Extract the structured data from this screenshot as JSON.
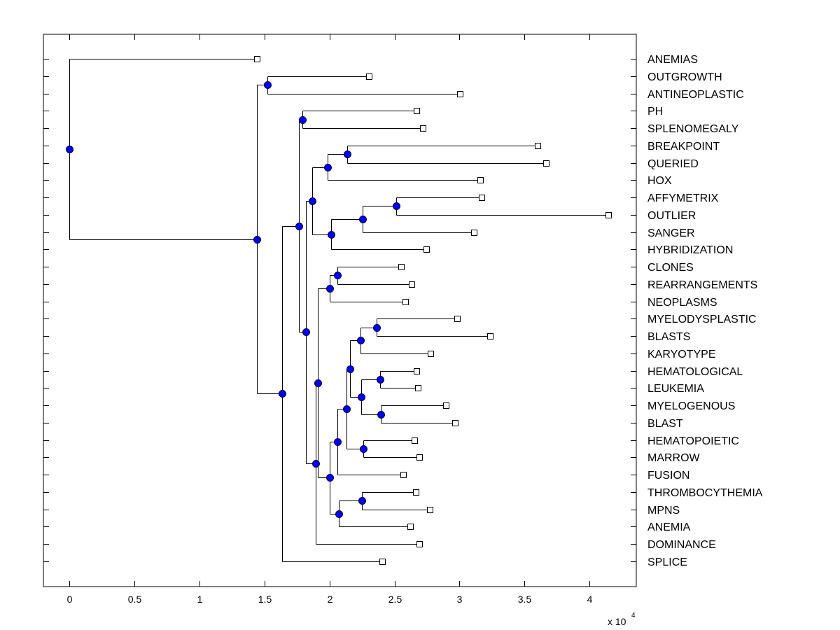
{
  "chart_data": {
    "type": "dendrogram",
    "title": "",
    "xlabel": "",
    "ylabel": "",
    "x_multiplier_label": "x 10",
    "x_multiplier_exponent": "4",
    "xlim": [
      -0.2,
      4.36
    ],
    "xticks": [
      0,
      0.5,
      1,
      1.5,
      2,
      2.5,
      3,
      3.5,
      4
    ],
    "xtick_labels": [
      "0",
      "0.5",
      "1",
      "1.5",
      "2",
      "2.5",
      "3",
      "3.5",
      "4"
    ],
    "grid": false,
    "orientation": "horizontal",
    "colors": {
      "node_fill": "#0000ff",
      "node_edge": "#000033",
      "leaf_fill": "#ffffff",
      "line": "#000000"
    },
    "leaves": [
      {
        "name": "ANEMIAS",
        "value": 1.443
      },
      {
        "name": "OUTGROWTH",
        "value": 2.304
      },
      {
        "name": "ANTINEOPLASTIC",
        "value": 3.004
      },
      {
        "name": "PH",
        "value": 2.67
      },
      {
        "name": "SPLENOMEGALY",
        "value": 2.719
      },
      {
        "name": "BREAKPOINT",
        "value": 3.602
      },
      {
        "name": "QUERIED",
        "value": 3.666
      },
      {
        "name": "HOX",
        "value": 3.16
      },
      {
        "name": "AFFYMETRIX",
        "value": 3.171
      },
      {
        "name": "OUTLIER",
        "value": 4.145
      },
      {
        "name": "SANGER",
        "value": 3.112
      },
      {
        "name": "HYBRIDIZATION",
        "value": 2.746
      },
      {
        "name": "CLONES",
        "value": 2.552
      },
      {
        "name": "REARRANGEMENTS",
        "value": 2.633
      },
      {
        "name": "NEOPLASMS",
        "value": 2.584
      },
      {
        "name": "MYELODYSPLASTIC",
        "value": 2.983
      },
      {
        "name": "BLASTS",
        "value": 3.236
      },
      {
        "name": "KARYOTYPE",
        "value": 2.778
      },
      {
        "name": "HEMATOLOGICAL",
        "value": 2.67
      },
      {
        "name": "LEUKEMIA",
        "value": 2.681
      },
      {
        "name": "MYELOGENOUS",
        "value": 2.896
      },
      {
        "name": "BLAST",
        "value": 2.966
      },
      {
        "name": "HEMATOPOIETIC",
        "value": 2.654
      },
      {
        "name": "MARROW",
        "value": 2.692
      },
      {
        "name": "FUSION",
        "value": 2.568
      },
      {
        "name": "THROMBOCYTHEMIA",
        "value": 2.665
      },
      {
        "name": "MPNS",
        "value": 2.773
      },
      {
        "name": "ANEMIA",
        "value": 2.622
      },
      {
        "name": "DOMINANCE",
        "value": 2.692
      },
      {
        "name": "SPLICE",
        "value": 2.406
      }
    ],
    "nodes": [
      {
        "id": "root",
        "value": 0.0,
        "children": [
          "ANEMIAS",
          "A"
        ]
      },
      {
        "id": "A",
        "value": 1.443,
        "children": [
          "B",
          "C"
        ]
      },
      {
        "id": "B",
        "value": 1.524,
        "children": [
          "OUTGROWTH",
          "ANTINEOPLASTIC"
        ]
      },
      {
        "id": "C",
        "value": 1.637,
        "children": [
          "D",
          "SPLICE"
        ]
      },
      {
        "id": "D",
        "value": 1.766,
        "children": [
          "E",
          "F"
        ]
      },
      {
        "id": "E",
        "value": 1.793,
        "children": [
          "PH",
          "SPLENOMEGALY"
        ]
      },
      {
        "id": "F",
        "value": 1.819,
        "children": [
          "G",
          "H"
        ]
      },
      {
        "id": "G",
        "value": 1.868,
        "children": [
          "I",
          "J"
        ]
      },
      {
        "id": "I",
        "value": 1.987,
        "children": [
          "K",
          "HOX"
        ]
      },
      {
        "id": "K",
        "value": 2.137,
        "children": [
          "BREAKPOINT",
          "QUERIED"
        ]
      },
      {
        "id": "J",
        "value": 2.013,
        "children": [
          "L",
          "HYBRIDIZATION"
        ]
      },
      {
        "id": "L",
        "value": 2.256,
        "children": [
          "M",
          "SANGER"
        ]
      },
      {
        "id": "M",
        "value": 2.514,
        "children": [
          "AFFYMETRIX",
          "OUTLIER"
        ]
      },
      {
        "id": "H",
        "value": 1.895,
        "children": [
          "N",
          "DOMINANCE"
        ]
      },
      {
        "id": "N",
        "value": 1.911,
        "children": [
          "O",
          "P"
        ]
      },
      {
        "id": "O",
        "value": 2.003,
        "children": [
          "Q",
          "NEOPLASMS"
        ]
      },
      {
        "id": "Q",
        "value": 2.062,
        "children": [
          "CLONES",
          "REARRANGEMENTS"
        ]
      },
      {
        "id": "P",
        "value": 2.003,
        "children": [
          "R",
          "S"
        ]
      },
      {
        "id": "R",
        "value": 2.062,
        "children": [
          "T",
          "FUSION"
        ]
      },
      {
        "id": "T",
        "value": 2.132,
        "children": [
          "U",
          "V"
        ]
      },
      {
        "id": "U",
        "value": 2.159,
        "children": [
          "W",
          "X"
        ]
      },
      {
        "id": "W",
        "value": 2.24,
        "children": [
          "Y",
          "KARYOTYPE"
        ]
      },
      {
        "id": "Y",
        "value": 2.363,
        "children": [
          "MYELODYSPLASTIC",
          "BLASTS"
        ]
      },
      {
        "id": "X",
        "value": 2.245,
        "children": [
          "Z1",
          "Z2"
        ]
      },
      {
        "id": "Z1",
        "value": 2.39,
        "children": [
          "HEMATOLOGICAL",
          "LEUKEMIA"
        ]
      },
      {
        "id": "Z2",
        "value": 2.396,
        "children": [
          "MYELOGENOUS",
          "BLAST"
        ]
      },
      {
        "id": "V",
        "value": 2.261,
        "children": [
          "HEMATOPOIETIC",
          "MARROW"
        ]
      },
      {
        "id": "S",
        "value": 2.073,
        "children": [
          "S2",
          "ANEMIA"
        ]
      },
      {
        "id": "S2",
        "value": 2.25,
        "children": [
          "THROMBOCYTHEMIA",
          "MPNS"
        ]
      }
    ]
  }
}
